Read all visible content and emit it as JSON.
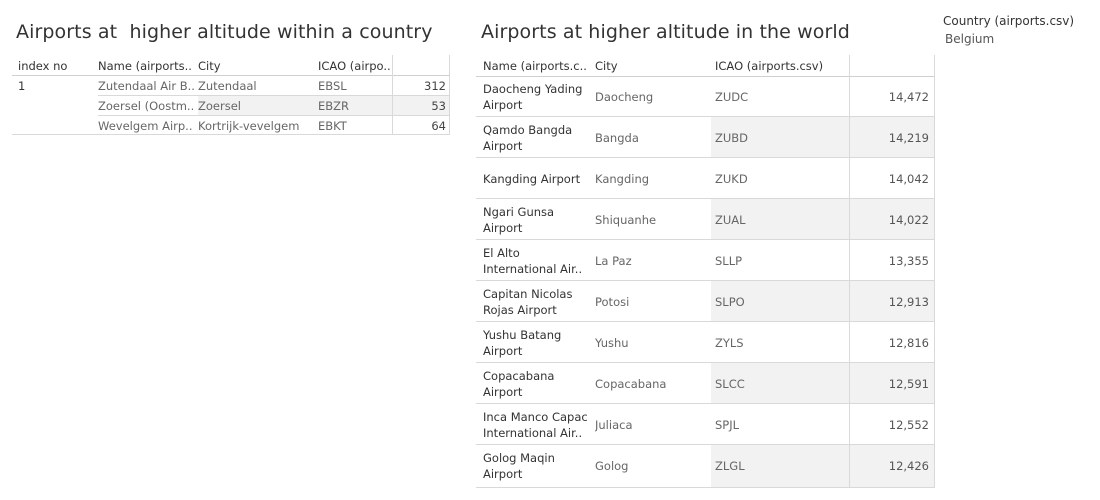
{
  "left": {
    "title": "Airports at  higher altitude within a country",
    "headers": {
      "index": "index no",
      "name": "Name (airports..",
      "city": "City",
      "icao": "ICAO (airpo..",
      "alt": ""
    },
    "rows": [
      {
        "index": "1",
        "name": "Zutendaal Air B..",
        "city": "Zutendaal",
        "icao": "EBSL",
        "alt": "312"
      },
      {
        "index": "",
        "name": "Zoersel (Oostm..",
        "city": "Zoersel",
        "icao": "EBZR",
        "alt": "53"
      },
      {
        "index": "",
        "name": "Wevelgem Airp..",
        "city": "Kortrijk-vevelgem",
        "icao": "EBKT",
        "alt": "64"
      }
    ]
  },
  "right": {
    "title": "Airports at higher altitude in the world",
    "headers": {
      "name": "Name (airports.c..",
      "city": "City",
      "icao": "ICAO (airports.csv)",
      "alt": ""
    },
    "rows": [
      {
        "name": "Daocheng Yading Airport",
        "city": "Daocheng",
        "icao": "ZUDC",
        "alt": "14,472"
      },
      {
        "name": "Qamdo Bangda Airport",
        "city": "Bangda",
        "icao": "ZUBD",
        "alt": "14,219"
      },
      {
        "name": "Kangding Airport",
        "city": "Kangding",
        "icao": "ZUKD",
        "alt": "14,042"
      },
      {
        "name": "Ngari Gunsa Airport",
        "city": "Shiquanhe",
        "icao": "ZUAL",
        "alt": "14,022"
      },
      {
        "name": "El Alto International Air..",
        "city": "La Paz",
        "icao": "SLLP",
        "alt": "13,355"
      },
      {
        "name": "Capitan Nicolas Rojas Airport",
        "city": "Potosi",
        "icao": "SLPO",
        "alt": "12,913"
      },
      {
        "name": "Yushu Batang Airport",
        "city": "Yushu",
        "icao": "ZYLS",
        "alt": "12,816"
      },
      {
        "name": "Copacabana Airport",
        "city": "Copacabana",
        "icao": "SLCC",
        "alt": "12,591"
      },
      {
        "name": "Inca Manco Capac International Air..",
        "city": "Juliaca",
        "icao": "SPJL",
        "alt": "12,552"
      },
      {
        "name": "Golog Maqin Airport",
        "city": "Golog",
        "icao": "ZLGL",
        "alt": "12,426"
      }
    ]
  },
  "filter": {
    "title": "Country (airports.csv)",
    "value": "Belgium"
  }
}
